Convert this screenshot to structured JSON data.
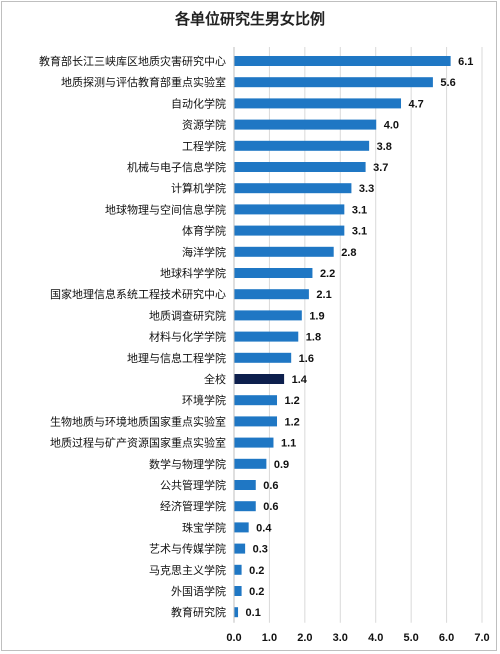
{
  "chart_data": {
    "type": "bar",
    "orientation": "horizontal",
    "title": "各单位研究生男女比例",
    "xlim": [
      0,
      7
    ],
    "ticks": [
      "0.0",
      "1.0",
      "2.0",
      "3.0",
      "4.0",
      "5.0",
      "6.0",
      "7.0"
    ],
    "grid": true,
    "colors": {
      "bar": "#1f77c4",
      "highlight": "#0d1f4d"
    },
    "highlight_category": "全校",
    "categories": [
      "教育部长江三峡库区地质灾害研究中心",
      "地质探测与评估教育部重点实验室",
      "自动化学院",
      "资源学院",
      "工程学院",
      "机械与电子信息学院",
      "计算机学院",
      "地球物理与空间信息学院",
      "体育学院",
      "海洋学院",
      "地球科学学院",
      "国家地理信息系统工程技术研究中心",
      "地质调查研究院",
      "材料与化学学院",
      "地理与信息工程学院",
      "全校",
      "环境学院",
      "生物地质与环境地质国家重点实验室",
      "地质过程与矿产资源国家重点实验室",
      "数学与物理学院",
      "公共管理学院",
      "经济管理学院",
      "珠宝学院",
      "艺术与传媒学院",
      "马克思主义学院",
      "外国语学院",
      "教育研究院"
    ],
    "values": [
      6.1,
      5.6,
      4.7,
      4.0,
      3.8,
      3.7,
      3.3,
      3.1,
      3.1,
      2.8,
      2.2,
      2.1,
      1.9,
      1.8,
      1.6,
      1.4,
      1.2,
      1.2,
      1.1,
      0.9,
      0.6,
      0.6,
      0.4,
      0.3,
      0.2,
      0.2,
      0.1
    ],
    "value_labels": [
      "6.1",
      "5.6",
      "4.7",
      "4.0",
      "3.8",
      "3.7",
      "3.3",
      "3.1",
      "3.1",
      "2.8",
      "2.2",
      "2.1",
      "1.9",
      "1.8",
      "1.6",
      "1.4",
      "1.2",
      "1.2",
      "1.1",
      "0.9",
      "0.6",
      "0.6",
      "0.4",
      "0.3",
      "0.2",
      "0.2",
      "0.1"
    ]
  }
}
